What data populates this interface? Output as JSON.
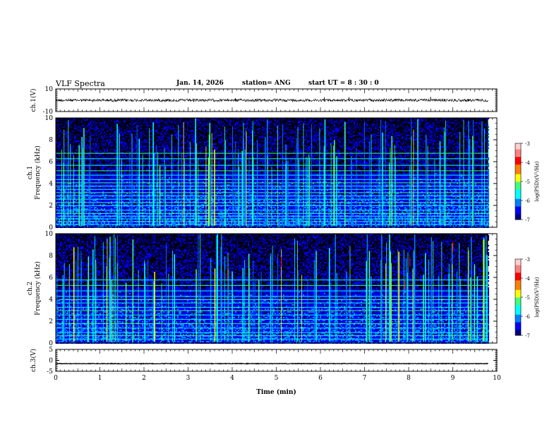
{
  "header": {
    "title": "VLF Spectra",
    "date": "Jan. 14, 2026",
    "station": "station= ANG",
    "start": "start  UT =   8  : 30 : 0"
  },
  "colors": {
    "colormap": [
      "#000080",
      "#0000ff",
      "#0080ff",
      "#00ffff",
      "#40ff80",
      "#ffff00",
      "#ff8000",
      "#ff0000",
      "#ff8080",
      "#ffd0d0"
    ]
  },
  "chart_data": [
    {
      "type": "line",
      "name": "ch1-waveform",
      "ylabel": "ch.1(V)",
      "ylim": [
        -10,
        10
      ],
      "yticks": [
        10,
        -10
      ],
      "xlim": [
        0,
        10
      ],
      "mean": 0,
      "noise_amplitude": 1.2,
      "data_end_min": 9.8
    },
    {
      "type": "heatmap",
      "name": "ch1-spectrogram",
      "ylabel_channel": "ch.1",
      "ylabel": "Frequency (kHz)",
      "ylim": [
        0,
        10
      ],
      "yticks": [
        0,
        2,
        4,
        6,
        8,
        10
      ],
      "xlim": [
        0,
        10
      ],
      "data_end_min": 9.8,
      "colorbar": {
        "label": "log(PSD)(V²/Hz)",
        "range": [
          -7,
          -3
        ],
        "ticks": [
          -3,
          -4,
          -5,
          -6,
          -7
        ]
      }
    },
    {
      "type": "heatmap",
      "name": "ch2-spectrogram",
      "ylabel_channel": "ch.2",
      "ylabel": "Frequency (kHz)",
      "ylim": [
        0,
        10
      ],
      "yticks": [
        0,
        2,
        4,
        6,
        8,
        10
      ],
      "xlim": [
        0,
        10
      ],
      "data_end_min": 9.8,
      "colorbar": {
        "label": "log(PSD)(V²/Hz)",
        "range": [
          -7,
          -3
        ],
        "ticks": [
          -3,
          -4,
          -5,
          -6,
          -7
        ]
      }
    },
    {
      "type": "line",
      "name": "ch3-waveform",
      "ylabel": "ch.3(V)",
      "ylim": [
        -5,
        5
      ],
      "yticks": [
        5,
        0,
        -5
      ],
      "xlim": [
        0,
        10
      ],
      "mean": -1.5,
      "noise_amplitude": 0.15,
      "data_end_min": 9.8
    }
  ],
  "xaxis": {
    "label": "Time (min)",
    "ticks": [
      0,
      1,
      2,
      3,
      4,
      5,
      6,
      7,
      8,
      9,
      10
    ]
  }
}
